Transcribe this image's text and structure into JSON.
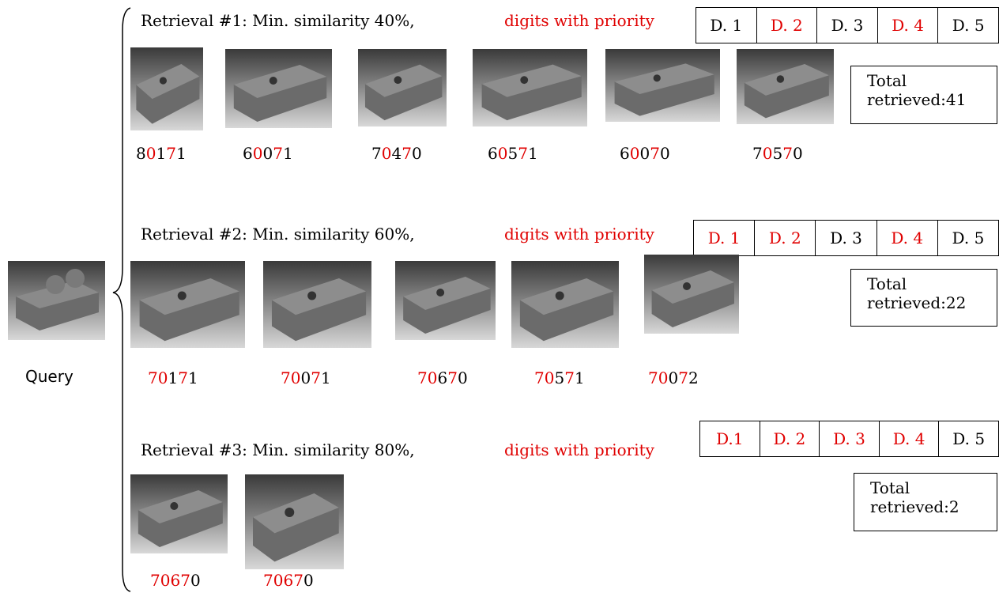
{
  "query": {
    "label": "Query"
  },
  "retrievals": [
    {
      "title": "Retrieval #1: Min. similarity 40%,",
      "priority_label": "digits with priority",
      "digits": [
        "D. 1",
        "D. 2",
        "D. 3",
        "D. 4",
        "D. 5"
      ],
      "priority": [
        false,
        true,
        false,
        true,
        false
      ],
      "results": [
        [
          "8",
          "0",
          "1",
          "7",
          "1"
        ],
        [
          "6",
          "0",
          "0",
          "7",
          "1"
        ],
        [
          "7",
          "0",
          "4",
          "7",
          "0"
        ],
        [
          "6",
          "0",
          "5",
          "7",
          "1"
        ],
        [
          "6",
          "0",
          "0",
          "7",
          "0"
        ],
        [
          "7",
          "0",
          "5",
          "7",
          "0"
        ]
      ],
      "total": "Total retrieved:41"
    },
    {
      "title": "Retrieval #2: Min. similarity 60%,",
      "priority_label": "digits with priority",
      "digits": [
        "D. 1",
        "D. 2",
        "D. 3",
        "D. 4",
        "D. 5"
      ],
      "priority": [
        true,
        true,
        false,
        true,
        false
      ],
      "results": [
        [
          "7",
          "0",
          "1",
          "7",
          "1"
        ],
        [
          "7",
          "0",
          "0",
          "7",
          "1"
        ],
        [
          "7",
          "0",
          "6",
          "7",
          "0"
        ],
        [
          "7",
          "0",
          "5",
          "7",
          "1"
        ],
        [
          "7",
          "0",
          "0",
          "7",
          "2"
        ]
      ],
      "total": "Total retrieved:22"
    },
    {
      "title": "Retrieval #3: Min. similarity 80%,",
      "priority_label": "digits with priority",
      "digits": [
        "D.1",
        "D. 2",
        "D. 3",
        "D. 4",
        "D. 5"
      ],
      "priority": [
        true,
        true,
        true,
        true,
        false
      ],
      "results": [
        [
          "7",
          "0",
          "6",
          "7",
          "0"
        ],
        [
          "7",
          "0",
          "6",
          "7",
          "0"
        ]
      ],
      "total": "Total retrieved:2"
    }
  ]
}
